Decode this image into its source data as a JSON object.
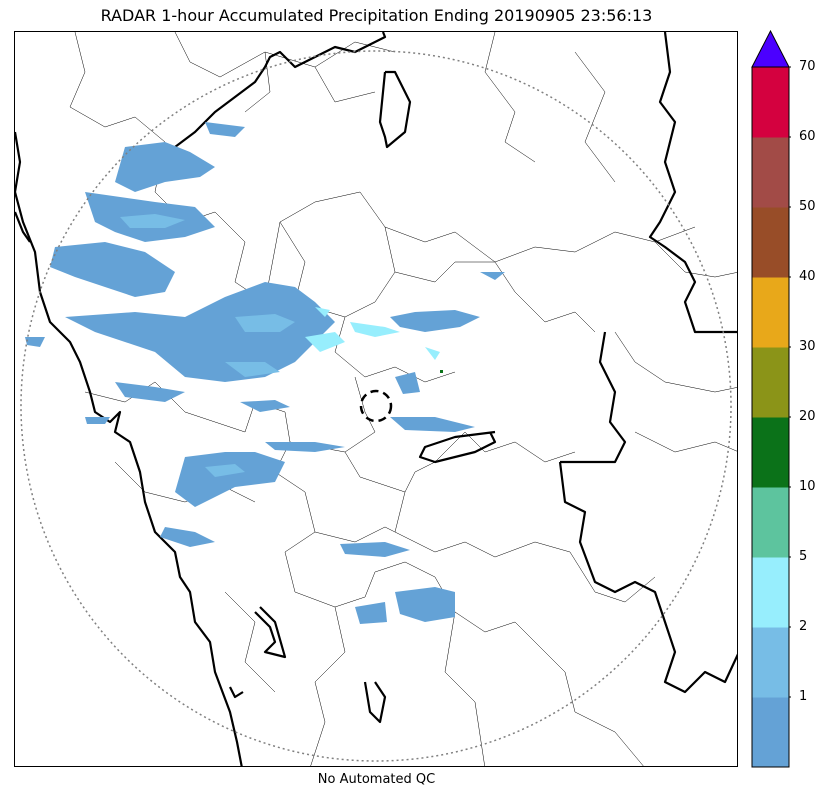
{
  "title": "RADAR 1-hour Accumulated Precipitation Ending 20190905 23:56:13",
  "footer_note": "No Automated QC",
  "colorbar": {
    "ticks": [
      "1",
      "2",
      "5",
      "10",
      "20",
      "30",
      "40",
      "50",
      "60",
      "70"
    ],
    "colors": [
      "#64a2d6",
      "#77bde6",
      "#97eefd",
      "#5dc49e",
      "#0b7219",
      "#8b9418",
      "#e8a81a",
      "#984d28",
      "#a24b47",
      "#d4013f"
    ],
    "extend_color": "#4b00ff"
  },
  "map": {
    "precip_light_color": "#64a2d6",
    "precip_mid_color": "#77bde6",
    "precip_cyan_color": "#97eefd",
    "range_ring_color": "#808080",
    "boundary_color": "#000000"
  }
}
